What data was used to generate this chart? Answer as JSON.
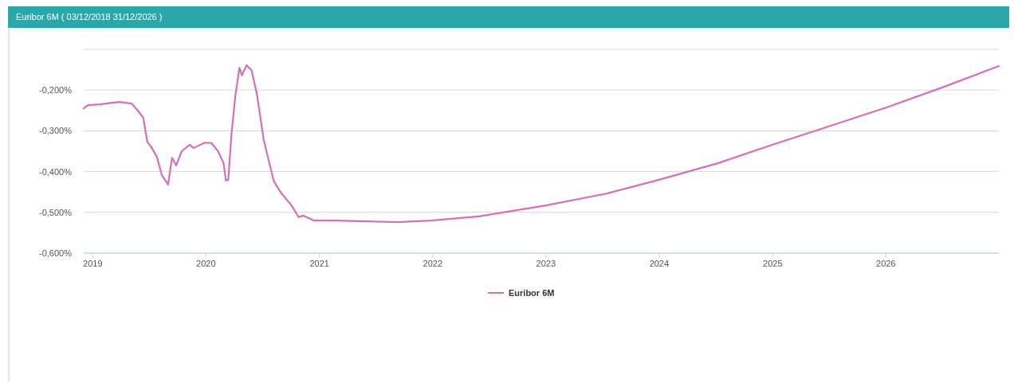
{
  "chart_data": {
    "type": "line",
    "title": "Euribor 6M ( 03/12/2018   31/12/2026 )",
    "xlim": [
      "2018-12-03",
      "2026-12-31"
    ],
    "xticks": [
      {
        "value": "2019-01-01",
        "label": "2019"
      },
      {
        "value": "2020-01-01",
        "label": "2020"
      },
      {
        "value": "2021-01-01",
        "label": "2021"
      },
      {
        "value": "2022-01-01",
        "label": "2022"
      },
      {
        "value": "2023-01-01",
        "label": "2023"
      },
      {
        "value": "2024-01-01",
        "label": "2024"
      },
      {
        "value": "2025-01-01",
        "label": "2025"
      },
      {
        "value": "2026-01-01",
        "label": "2026"
      }
    ],
    "ylim": [
      -0.6,
      -0.1
    ],
    "yticks": [
      {
        "value": -0.6,
        "label": "-0,600%"
      },
      {
        "value": -0.5,
        "label": "-0,500%"
      },
      {
        "value": -0.4,
        "label": "-0,400%"
      },
      {
        "value": -0.3,
        "label": "-0,300%"
      },
      {
        "value": -0.2,
        "label": "-0,200%"
      },
      {
        "value": -0.1,
        "label": null
      }
    ],
    "grid": "y",
    "legend": "bottom",
    "marker": "none",
    "line_style": "solid",
    "x": [
      "2018-12-03",
      "2018-12-17",
      "2019-01-24",
      "2019-03-04",
      "2019-03-29",
      "2019-05-06",
      "2019-05-24",
      "2019-06-13",
      "2019-06-26",
      "2019-07-09",
      "2019-07-27",
      "2019-08-12",
      "2019-09-01",
      "2019-09-14",
      "2019-09-27",
      "2019-10-15",
      "2019-11-10",
      "2019-11-22",
      "2019-12-28",
      "2020-01-19",
      "2020-02-09",
      "2020-02-27",
      "2020-03-05",
      "2020-03-13",
      "2020-03-23",
      "2020-04-05",
      "2020-04-18",
      "2020-04-26",
      "2020-05-11",
      "2020-05-27",
      "2020-06-14",
      "2020-07-05",
      "2020-08-07",
      "2020-08-30",
      "2020-10-03",
      "2020-10-26",
      "2020-11-10",
      "2020-12-14",
      "2021-02-20",
      "2021-09-15",
      "2021-12-27",
      "2022-05-30",
      "2023-01-01",
      "2023-07-15",
      "2024-01-01",
      "2024-07-10",
      "2025-01-01",
      "2025-07-05",
      "2026-01-01",
      "2026-06-30",
      "2026-12-31"
    ],
    "series": [
      {
        "name": "Euribor 6M",
        "color": "#d271b9",
        "values": [
          -0.245,
          -0.237,
          -0.235,
          -0.231,
          -0.229,
          -0.233,
          -0.248,
          -0.268,
          -0.327,
          -0.34,
          -0.364,
          -0.409,
          -0.432,
          -0.366,
          -0.385,
          -0.35,
          -0.334,
          -0.342,
          -0.329,
          -0.33,
          -0.35,
          -0.379,
          -0.422,
          -0.42,
          -0.311,
          -0.213,
          -0.145,
          -0.164,
          -0.139,
          -0.151,
          -0.213,
          -0.321,
          -0.424,
          -0.452,
          -0.483,
          -0.512,
          -0.508,
          -0.52,
          -0.52,
          -0.524,
          -0.52,
          -0.51,
          -0.483,
          -0.454,
          -0.42,
          -0.379,
          -0.334,
          -0.288,
          -0.243,
          -0.194,
          -0.141
        ]
      }
    ]
  }
}
